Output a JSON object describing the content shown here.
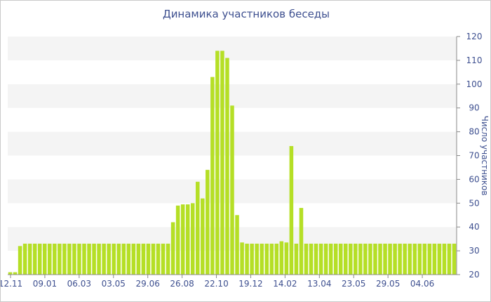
{
  "chart_data": {
    "type": "bar",
    "title": "Динамика участников беседы",
    "ylabel": "Число участников",
    "xlabel": "",
    "ylim": [
      20,
      120
    ],
    "y_axis_side": "right",
    "y_ticks": [
      20,
      30,
      40,
      50,
      60,
      70,
      80,
      90,
      100,
      110,
      120
    ],
    "x_tick_labels": [
      "12.11",
      "09.01",
      "06.03",
      "03.05",
      "29.06",
      "26.08",
      "22.10",
      "19.12",
      "14.02",
      "13.04",
      "23.05",
      "29.05",
      "04.06"
    ],
    "bar_color": "#b5df26",
    "grid": "alternating horizontal bands",
    "values": [
      21,
      21,
      32,
      33,
      33,
      33,
      33,
      33,
      33,
      33,
      33,
      33,
      33,
      33,
      33,
      33,
      33,
      33,
      33,
      33,
      33,
      33,
      33,
      33,
      33,
      33,
      33,
      33,
      33,
      33,
      33,
      33,
      33,
      42,
      49,
      49.5,
      49.5,
      50,
      59,
      52,
      64,
      103,
      114,
      114,
      111,
      91,
      45,
      33.5,
      33,
      33,
      33,
      33,
      33,
      33,
      33,
      34,
      33.5,
      74,
      33,
      48,
      33,
      33,
      33,
      33,
      33,
      33,
      33,
      33,
      33,
      33,
      33,
      33,
      33,
      33,
      33,
      33,
      33,
      33,
      33,
      33,
      33,
      33,
      33,
      33,
      33,
      33,
      33,
      33,
      33,
      33,
      33
    ]
  }
}
